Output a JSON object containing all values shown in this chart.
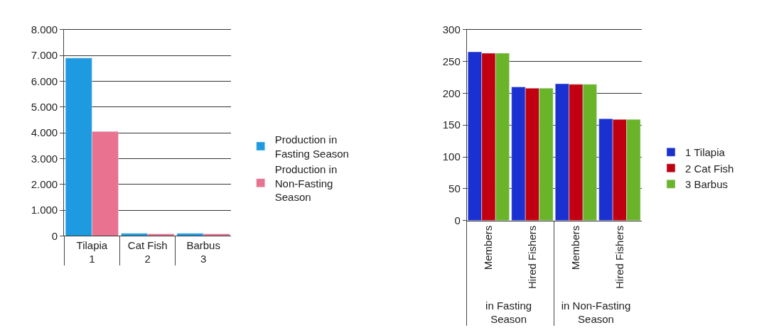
{
  "chart_data": [
    {
      "type": "bar",
      "categories": [
        [
          "1",
          "Tilapia"
        ],
        [
          "2",
          "Cat Fish"
        ],
        [
          "3",
          "Barbus"
        ]
      ],
      "series": [
        {
          "name": "Production in Fasting Season",
          "color": "#1e9ae0",
          "values": [
            6900,
            100,
            100
          ]
        },
        {
          "name": "Production in Non-Fasting Season",
          "color": "#e8728f",
          "values": [
            4050,
            80,
            80
          ]
        }
      ],
      "ylim": [
        0,
        8000
      ],
      "yticks": [
        {
          "value": 0,
          "label": "0"
        },
        {
          "value": 1000,
          "label": "1.000"
        },
        {
          "value": 2000,
          "label": "2.000"
        },
        {
          "value": 3000,
          "label": "3.000"
        },
        {
          "value": 4000,
          "label": "4.000"
        },
        {
          "value": 5000,
          "label": "5.000"
        },
        {
          "value": 6000,
          "label": "6.000"
        },
        {
          "value": 7000,
          "label": "7.000"
        },
        {
          "value": 8000,
          "label": "8.000"
        }
      ],
      "grid": "y",
      "legend": "right"
    },
    {
      "type": "bar",
      "categories": [
        [
          "in Fasting Season",
          "Members"
        ],
        [
          null,
          "Hired Fishers"
        ],
        [
          "in Non-Fasting Season",
          "Members"
        ],
        [
          null,
          "Hired Fishers"
        ]
      ],
      "series": [
        {
          "name": "1 Tilapia",
          "color": "#1a30d0",
          "values": [
            265,
            210,
            215,
            160
          ]
        },
        {
          "name": "2 Cat Fish",
          "color": "#c00010",
          "values": [
            263,
            208,
            214,
            159
          ]
        },
        {
          "name": "3 Barbus",
          "color": "#6ab42a",
          "values": [
            263,
            208,
            214,
            159
          ]
        }
      ],
      "ylim": [
        0,
        300
      ],
      "yticks": [
        0,
        50,
        100,
        150,
        200,
        250,
        300
      ],
      "grid": "y",
      "legend": "right"
    }
  ]
}
